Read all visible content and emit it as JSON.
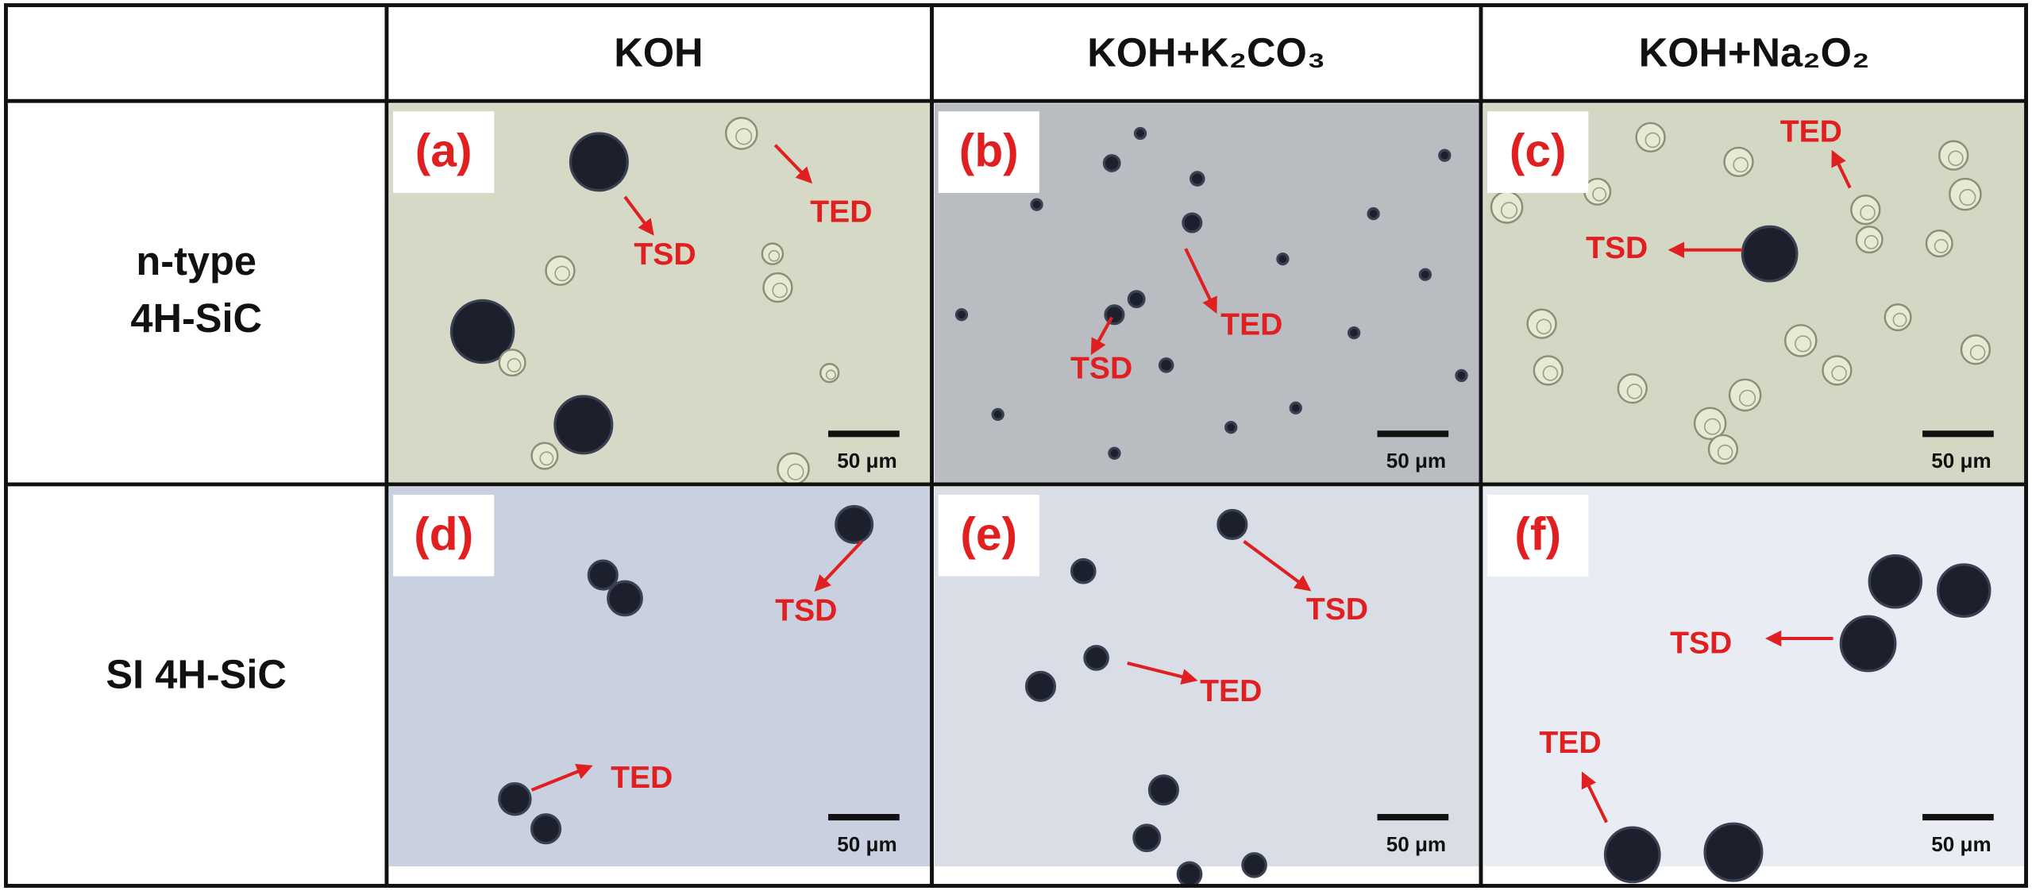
{
  "header": {
    "columns": [
      "KOH",
      "KOH+K₂CO₃",
      "KOH+Na₂O₂"
    ]
  },
  "rows": [
    {
      "label": [
        "n-type",
        "4H-SiC"
      ]
    },
    {
      "label": [
        "SI 4H-SiC"
      ]
    }
  ],
  "panels": [
    {
      "label": "(a)",
      "annotations": [
        "TSD",
        "TED"
      ],
      "scale_bar": "50 μm"
    },
    {
      "label": "(b)",
      "annotations": [
        "TED",
        "TSD"
      ],
      "scale_bar": "50 μm"
    },
    {
      "label": "(c)",
      "annotations": [
        "TED",
        "TSD"
      ],
      "scale_bar": "50 μm"
    },
    {
      "label": "(d)",
      "annotations": [
        "TSD",
        "TED"
      ],
      "scale_bar": "50 μm"
    },
    {
      "label": "(e)",
      "annotations": [
        "TSD",
        "TED"
      ],
      "scale_bar": "50 μm"
    },
    {
      "label": "(f)",
      "annotations": [
        "TSD",
        "TED"
      ],
      "scale_bar": "50 μm"
    }
  ]
}
